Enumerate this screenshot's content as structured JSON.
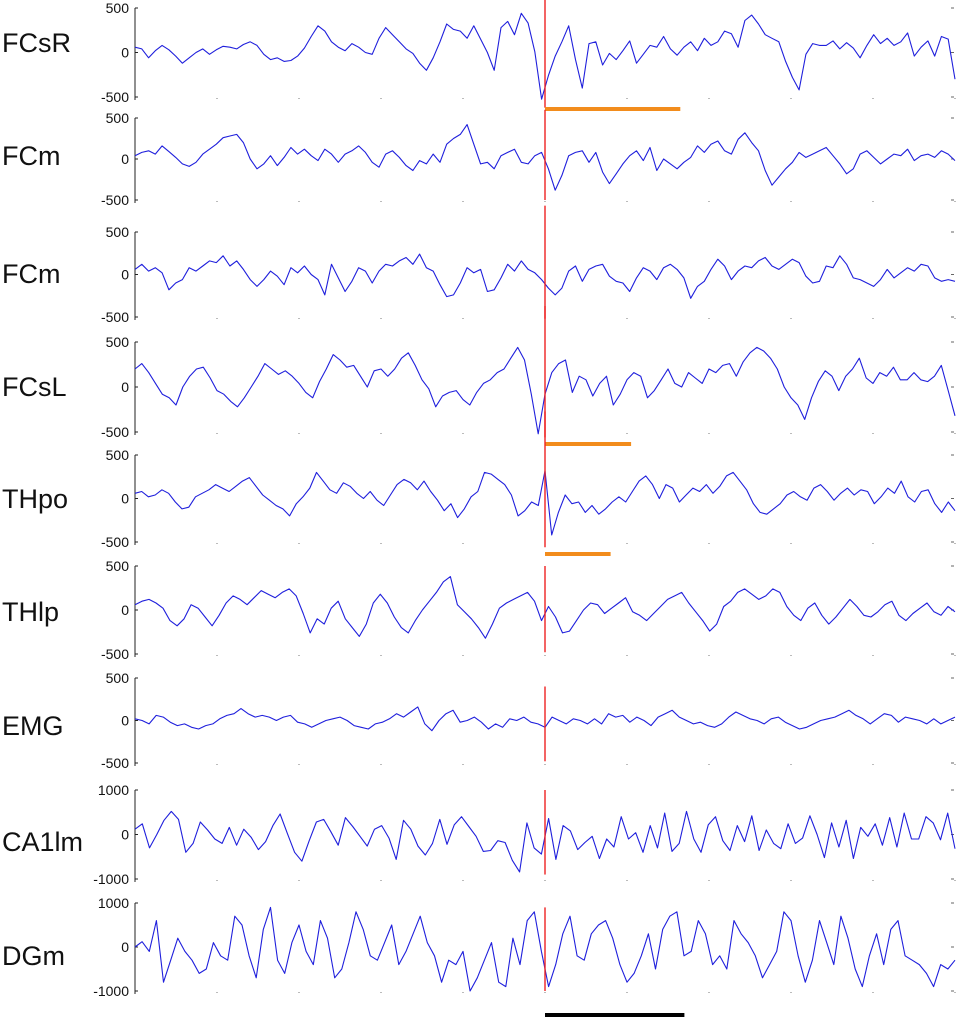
{
  "chart_data": {
    "type": "line",
    "title": "",
    "xlabel": "",
    "ylabel": "",
    "grid": false,
    "x_range": [
      0,
      100
    ],
    "event_x": 50,
    "scale_bar": {
      "label": "",
      "x_start": 50,
      "x_end": 67,
      "color": "#000000"
    },
    "channels": [
      {
        "name": "FCsR",
        "ylim": [
          -500,
          500
        ],
        "ticks": [
          "500",
          "0",
          "-500"
        ],
        "highlight": {
          "x_start": 50,
          "x_end": 66.5,
          "color": "#f28c1c"
        },
        "event_span": [
          -620,
          800
        ],
        "values": [
          60,
          40,
          -60,
          20,
          80,
          30,
          -40,
          -120,
          -60,
          0,
          40,
          -20,
          30,
          70,
          60,
          40,
          90,
          120,
          80,
          -20,
          -80,
          -60,
          -100,
          -90,
          -40,
          50,
          180,
          300,
          240,
          120,
          60,
          20,
          100,
          60,
          0,
          -20,
          160,
          280,
          200,
          120,
          40,
          -10,
          -120,
          -200,
          -60,
          120,
          320,
          260,
          240,
          160,
          300,
          150,
          0,
          -200,
          280,
          350,
          200,
          440,
          330,
          10,
          -580,
          -260,
          -40,
          120,
          300,
          -80,
          -400,
          100,
          120,
          -140,
          -10,
          -80,
          20,
          130,
          -120,
          -20,
          80,
          60,
          180,
          40,
          -30,
          60,
          120,
          20,
          160,
          80,
          120,
          240,
          210,
          60,
          360,
          420,
          320,
          200,
          160,
          120,
          -100,
          -280,
          -420,
          -20,
          100,
          80,
          80,
          130,
          40,
          110,
          50,
          -60,
          80,
          200,
          100,
          160,
          80,
          120,
          220,
          -40,
          60,
          130,
          -40,
          180,
          150,
          -300
        ]
      },
      {
        "name": "FCm",
        "ylim": [
          -500,
          500
        ],
        "ticks": [
          "500",
          "0",
          "-500"
        ],
        "event_span": [
          -500,
          600
        ],
        "values": [
          40,
          80,
          100,
          60,
          160,
          90,
          20,
          -60,
          -90,
          -40,
          60,
          120,
          180,
          260,
          280,
          300,
          200,
          0,
          -120,
          -60,
          40,
          -80,
          20,
          140,
          60,
          120,
          40,
          -20,
          120,
          60,
          -40,
          60,
          100,
          160,
          80,
          -40,
          -100,
          60,
          100,
          20,
          -80,
          -140,
          -20,
          -60,
          60,
          -40,
          180,
          250,
          300,
          420,
          180,
          -60,
          -40,
          -120,
          40,
          80,
          120,
          -40,
          -60,
          40,
          80,
          -120,
          -380,
          -200,
          40,
          80,
          100,
          -40,
          80,
          -160,
          -300,
          -180,
          -60,
          40,
          100,
          -20,
          140,
          -140,
          0,
          -60,
          -120,
          -40,
          20,
          160,
          80,
          180,
          220,
          100,
          60,
          240,
          320,
          200,
          100,
          -140,
          -320,
          -220,
          -120,
          -40,
          80,
          20,
          60,
          100,
          140,
          40,
          -60,
          -180,
          -120,
          60,
          100,
          20,
          -60,
          0,
          60,
          40,
          120,
          -20,
          40,
          60,
          20,
          100,
          60,
          -20
        ]
      },
      {
        "name": "FCm",
        "ylim": [
          -500,
          500
        ],
        "ticks": [
          "500",
          "0",
          "-500"
        ],
        "event_span": [
          -520,
          810
        ],
        "values": [
          60,
          120,
          40,
          80,
          20,
          -180,
          -100,
          -60,
          80,
          40,
          100,
          160,
          140,
          220,
          100,
          160,
          60,
          -60,
          -140,
          -60,
          40,
          -20,
          -120,
          80,
          20,
          100,
          0,
          -60,
          -240,
          120,
          -40,
          -200,
          -80,
          80,
          40,
          -100,
          40,
          120,
          100,
          160,
          200,
          120,
          240,
          80,
          40,
          -120,
          -260,
          -240,
          -100,
          80,
          20,
          60,
          -200,
          -180,
          -40,
          120,
          40,
          160,
          60,
          20,
          -60,
          -160,
          -240,
          -160,
          40,
          100,
          -80,
          60,
          100,
          120,
          -20,
          -80,
          -100,
          -200,
          -40,
          80,
          40,
          -60,
          80,
          120,
          60,
          -40,
          -280,
          -140,
          -80,
          60,
          180,
          100,
          -60,
          40,
          100,
          80,
          160,
          200,
          100,
          60,
          120,
          180,
          140,
          -20,
          -100,
          -80,
          100,
          80,
          220,
          120,
          -40,
          -60,
          -100,
          -140,
          -60,
          60,
          -40,
          20,
          80,
          40,
          120,
          100,
          -40,
          -80,
          -60,
          -80
        ]
      },
      {
        "name": "FCsL",
        "ylim": [
          -500,
          500
        ],
        "ticks": [
          "500",
          "0",
          "-500"
        ],
        "highlight": {
          "x_start": 50,
          "x_end": 60.5,
          "color": "#f28c1c"
        },
        "event_span": [
          -560,
          900
        ],
        "values": [
          200,
          260,
          160,
          40,
          -80,
          -120,
          -200,
          0,
          120,
          200,
          220,
          100,
          -40,
          -80,
          -160,
          -220,
          -120,
          0,
          120,
          260,
          200,
          140,
          180,
          120,
          40,
          -60,
          -120,
          60,
          200,
          360,
          300,
          220,
          240,
          120,
          0,
          180,
          200,
          120,
          200,
          320,
          380,
          240,
          80,
          -20,
          -220,
          -100,
          -60,
          -40,
          -140,
          -200,
          -60,
          40,
          80,
          160,
          200,
          320,
          440,
          300,
          -80,
          -520,
          -80,
          160,
          260,
          300,
          -60,
          120,
          80,
          -100,
          40,
          120,
          -200,
          -80,
          80,
          160,
          120,
          -120,
          -40,
          80,
          200,
          40,
          0,
          160,
          100,
          40,
          200,
          160,
          240,
          260,
          120,
          280,
          380,
          440,
          400,
          320,
          200,
          0,
          -120,
          -200,
          -360,
          -120,
          60,
          180,
          120,
          -40,
          120,
          200,
          320,
          100,
          40,
          160,
          120,
          220,
          80,
          80,
          160,
          80,
          60,
          120,
          240,
          -40,
          -320
        ]
      },
      {
        "name": "THpo",
        "ylim": [
          -500,
          500
        ],
        "ticks": [
          "500",
          "0",
          "-500"
        ],
        "highlight": {
          "x_start": 50,
          "x_end": 58.0,
          "color": "#f28c1c"
        },
        "event_span": [
          -560,
          1000
        ],
        "values": [
          60,
          80,
          20,
          40,
          100,
          60,
          -40,
          -120,
          -100,
          20,
          60,
          100,
          160,
          120,
          80,
          140,
          200,
          240,
          140,
          40,
          -20,
          -80,
          -120,
          -200,
          -60,
          20,
          120,
          300,
          200,
          100,
          60,
          180,
          140,
          60,
          0,
          80,
          -20,
          -80,
          40,
          160,
          220,
          180,
          100,
          200,
          80,
          -20,
          -140,
          -60,
          -220,
          -120,
          20,
          80,
          300,
          280,
          220,
          160,
          40,
          -200,
          -140,
          -40,
          -80,
          320,
          -420,
          -160,
          40,
          -60,
          -40,
          -160,
          -80,
          -180,
          -120,
          -40,
          20,
          -40,
          80,
          200,
          260,
          160,
          0,
          160,
          120,
          -40,
          40,
          120,
          80,
          160,
          60,
          140,
          260,
          300,
          200,
          100,
          -60,
          -160,
          -180,
          -120,
          -60,
          40,
          80,
          20,
          -20,
          120,
          160,
          80,
          -20,
          60,
          120,
          40,
          100,
          80,
          -60,
          20,
          120,
          60,
          200,
          20,
          -40,
          80,
          100,
          -60,
          -160,
          -40,
          -140
        ]
      },
      {
        "name": "THlp",
        "ylim": [
          -500,
          500
        ],
        "ticks": [
          "500",
          "0",
          "-500"
        ],
        "event_span": [
          -480,
          500
        ],
        "values": [
          60,
          100,
          120,
          80,
          20,
          -120,
          -180,
          -100,
          60,
          20,
          -80,
          -180,
          -60,
          80,
          160,
          120,
          60,
          140,
          220,
          180,
          140,
          200,
          240,
          160,
          -40,
          -260,
          -100,
          -160,
          20,
          100,
          -100,
          -200,
          -300,
          -160,
          80,
          180,
          80,
          -80,
          -200,
          -260,
          -120,
          0,
          100,
          200,
          320,
          380,
          60,
          -20,
          -100,
          -200,
          -320,
          -160,
          20,
          80,
          120,
          160,
          200,
          100,
          -120,
          40,
          -80,
          -260,
          -240,
          -120,
          0,
          80,
          60,
          -40,
          20,
          80,
          140,
          -20,
          -60,
          -120,
          -40,
          40,
          120,
          160,
          200,
          80,
          -20,
          -120,
          -240,
          -160,
          40,
          100,
          200,
          240,
          180,
          120,
          160,
          240,
          200,
          40,
          -60,
          -120,
          20,
          80,
          -60,
          -160,
          -80,
          20,
          120,
          40,
          -60,
          -80,
          -20,
          60,
          100,
          -60,
          -120,
          -40,
          20,
          80,
          -20,
          -60,
          40,
          -20
        ]
      },
      {
        "name": "EMG",
        "ylim": [
          -500,
          500
        ],
        "ticks": [
          "500",
          "0",
          "-500"
        ],
        "event_span": [
          -480,
          400
        ],
        "values": [
          20,
          0,
          -40,
          60,
          40,
          -20,
          -60,
          -40,
          -80,
          -100,
          -60,
          -40,
          20,
          60,
          80,
          140,
          80,
          40,
          60,
          40,
          0,
          40,
          60,
          -20,
          -40,
          -80,
          -40,
          0,
          20,
          40,
          0,
          -60,
          -80,
          -100,
          -40,
          -20,
          20,
          80,
          40,
          100,
          160,
          -40,
          -120,
          0,
          80,
          120,
          -20,
          0,
          40,
          -20,
          -100,
          -40,
          -80,
          20,
          0,
          40,
          -20,
          -40,
          -80,
          40,
          0,
          -40,
          20,
          0,
          -40,
          20,
          -40,
          80,
          40,
          60,
          -20,
          40,
          0,
          -60,
          40,
          80,
          120,
          40,
          0,
          -40,
          -20,
          -60,
          -80,
          -40,
          40,
          100,
          60,
          20,
          0,
          -40,
          20,
          40,
          -20,
          -60,
          -100,
          -80,
          -40,
          0,
          20,
          40,
          80,
          120,
          60,
          20,
          -40,
          20,
          80,
          60,
          -20,
          40,
          20,
          0,
          -40,
          20,
          -40,
          0,
          40
        ]
      },
      {
        "name": "CA1lm",
        "ylim": [
          -1000,
          1000
        ],
        "ticks": [
          "1000",
          "0",
          "-1000"
        ],
        "event_span": [
          -900,
          1000
        ],
        "values": [
          120,
          240,
          -300,
          0,
          320,
          520,
          340,
          -400,
          -200,
          280,
          100,
          -100,
          -200,
          160,
          -240,
          120,
          -60,
          -340,
          -160,
          200,
          460,
          20,
          -400,
          -600,
          -140,
          280,
          340,
          60,
          -240,
          380,
          180,
          -40,
          -260,
          120,
          200,
          -80,
          -560,
          320,
          120,
          -260,
          -460,
          -200,
          340,
          -220,
          220,
          400,
          180,
          -40,
          -380,
          -360,
          -140,
          -180,
          -580,
          -840,
          260,
          -300,
          -440,
          360,
          -560,
          200,
          80,
          -340,
          -180,
          -40,
          -540,
          -100,
          -280,
          400,
          -100,
          40,
          -400,
          200,
          -300,
          480,
          -380,
          -200,
          520,
          -100,
          -400,
          220,
          400,
          -140,
          -360,
          200,
          -160,
          420,
          -360,
          100,
          -200,
          -320,
          240,
          -200,
          -80,
          420,
          0,
          -520,
          260,
          -280,
          320,
          -540,
          160,
          -40,
          240,
          -240,
          380,
          -280,
          480,
          -100,
          -100,
          400,
          260,
          -120,
          480,
          -320
        ]
      },
      {
        "name": "DGm",
        "ylim": [
          -1000,
          1000
        ],
        "ticks": [
          "1000",
          "0",
          "-1000"
        ],
        "event_span": [
          -1000,
          900
        ],
        "values": [
          0,
          120,
          -100,
          600,
          -800,
          -300,
          200,
          -100,
          -300,
          -600,
          -500,
          100,
          -200,
          -300,
          700,
          500,
          -200,
          -700,
          400,
          900,
          -300,
          -600,
          100,
          500,
          -100,
          -400,
          600,
          200,
          -700,
          -500,
          100,
          800,
          400,
          -200,
          -300,
          100,
          500,
          -400,
          -100,
          300,
          700,
          100,
          -200,
          -800,
          -300,
          -400,
          -100,
          -1000,
          -700,
          -300,
          100,
          -800,
          -900,
          200,
          -400,
          600,
          800,
          -100,
          -900,
          -400,
          300,
          700,
          -200,
          -300,
          300,
          500,
          600,
          200,
          -400,
          -800,
          -600,
          -200,
          300,
          -500,
          400,
          700,
          800,
          -200,
          -100,
          600,
          300,
          -400,
          -200,
          -500,
          600,
          300,
          100,
          -200,
          -700,
          -400,
          -100,
          800,
          600,
          -200,
          -800,
          -300,
          600,
          100,
          -400,
          700,
          200,
          -500,
          -900,
          -200,
          300,
          -400,
          400,
          600,
          -200,
          -300,
          -400,
          -600,
          -900,
          -400,
          -500,
          -300
        ]
      }
    ]
  }
}
